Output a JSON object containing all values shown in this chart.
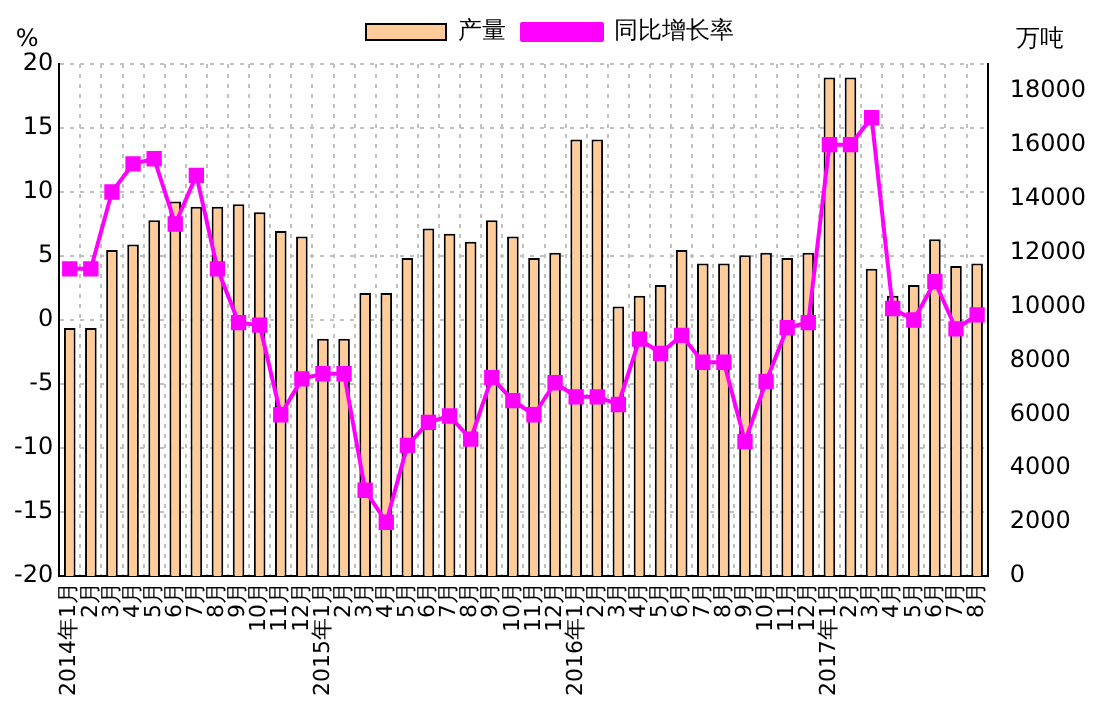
{
  "chart_data": {
    "type": "bar",
    "ylabel": "%",
    "y2label": "万吨",
    "categories": [
      "2014年1月",
      "2月",
      "3月",
      "4月",
      "5月",
      "6月",
      "7月",
      "8月",
      "9月",
      "10月",
      "11月",
      "12月",
      "2015年1月",
      "2月",
      "3月",
      "4月",
      "5月",
      "6月",
      "7月",
      "8月",
      "9月",
      "10月",
      "11月",
      "12月",
      "2016年1月",
      "2月",
      "3月",
      "4月",
      "5月",
      "6月",
      "7月",
      "8月",
      "9月",
      "10月",
      "11月",
      "12月",
      "2017年1月",
      "2月",
      "3月",
      "4月",
      "5月",
      "6月",
      "7月",
      "8月"
    ],
    "series": [
      {
        "name": "产量",
        "axis": "y2",
        "color": "#ffcc99",
        "values": [
          9200,
          9200,
          12100,
          12300,
          13200,
          13900,
          13700,
          13700,
          13800,
          13500,
          12800,
          12600,
          8800,
          8800,
          10500,
          10500,
          11800,
          12900,
          12700,
          12400,
          13200,
          12600,
          11800,
          12000,
          16200,
          16200,
          10000,
          10400,
          10800,
          12100,
          11600,
          11600,
          11900,
          12000,
          11800,
          12000,
          18500,
          18500,
          11400,
          10400,
          10800,
          12500,
          11500,
          11600
        ]
      },
      {
        "name": "同比增长率",
        "type": "line",
        "axis": "y",
        "color": "#ff00ff",
        "values": [
          4,
          4,
          10,
          12.2,
          12.6,
          7.5,
          11.3,
          4,
          -0.2,
          -0.4,
          -7.4,
          -4.6,
          -4.2,
          -4.2,
          -13.3,
          -15.8,
          -9.8,
          -8,
          -7.5,
          -9.3,
          -4.5,
          -6.3,
          -7.4,
          -4.9,
          -6,
          -6,
          -6.6,
          -1.5,
          -2.6,
          -1.2,
          -3.3,
          -3.3,
          -9.5,
          -4.8,
          -0.6,
          -0.2,
          13.7,
          13.7,
          15.8,
          0.9,
          0,
          3,
          -0.7,
          0.4
        ]
      }
    ],
    "ylim": [
      -20,
      20
    ],
    "yticks": [
      -20,
      -15,
      -10,
      -5,
      0,
      5,
      10,
      15,
      20
    ],
    "y2lim": [
      0,
      19000
    ],
    "y2ticks": [
      0,
      2000,
      4000,
      6000,
      8000,
      10000,
      12000,
      14000,
      16000,
      18000
    ],
    "grid": true,
    "legend": "top",
    "marker": "square",
    "line_style": "solid"
  }
}
